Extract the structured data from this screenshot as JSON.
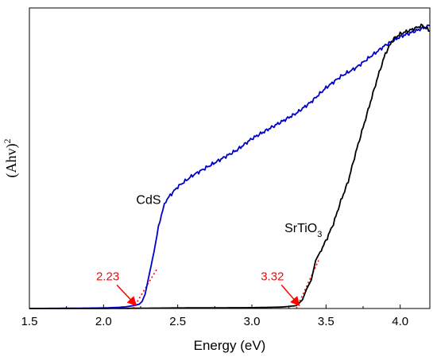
{
  "chart_data": {
    "type": "line",
    "xlabel": "Energy (eV)",
    "ylabel": {
      "base": "(Ahv)",
      "sup": "2"
    },
    "xlim": [
      1.5,
      4.2
    ],
    "ylim": [
      0,
      1.0
    ],
    "xticks": [
      "1.5",
      "2.0",
      "2.5",
      "3.0",
      "3.5",
      "4.0"
    ],
    "xtick_values": [
      1.5,
      2.0,
      2.5,
      3.0,
      3.5,
      4.0
    ],
    "y_ticks_labeled": false,
    "grid": false,
    "series": [
      {
        "name": "CdS",
        "color": "#0000cc",
        "x": [
          1.5,
          1.8,
          2.0,
          2.1,
          2.15,
          2.2,
          2.24,
          2.26,
          2.28,
          2.3,
          2.32,
          2.34,
          2.36,
          2.38,
          2.4,
          2.42,
          2.45,
          2.5,
          2.6,
          2.7,
          2.8,
          2.9,
          3.0,
          3.1,
          3.2,
          3.3,
          3.4,
          3.5,
          3.6,
          3.7,
          3.8,
          3.9,
          4.0,
          4.1,
          4.2
        ],
        "y": [
          0.0,
          0.001,
          0.002,
          0.004,
          0.006,
          0.01,
          0.015,
          0.025,
          0.05,
          0.1,
          0.15,
          0.2,
          0.26,
          0.31,
          0.35,
          0.38,
          0.4,
          0.43,
          0.47,
          0.5,
          0.53,
          0.56,
          0.6,
          0.63,
          0.66,
          0.69,
          0.73,
          0.78,
          0.82,
          0.85,
          0.89,
          0.93,
          0.96,
          0.98,
          1.0
        ]
      },
      {
        "name": "SrTiO3",
        "color": "#000000",
        "x": [
          1.5,
          2.0,
          2.5,
          3.0,
          3.2,
          3.3,
          3.34,
          3.37,
          3.4,
          3.43,
          3.46,
          3.5,
          3.55,
          3.6,
          3.65,
          3.7,
          3.75,
          3.8,
          3.85,
          3.9,
          3.95,
          4.0,
          4.05,
          4.1,
          4.15,
          4.2
        ],
        "y": [
          0.0,
          0.0,
          0.002,
          0.003,
          0.005,
          0.01,
          0.03,
          0.07,
          0.1,
          0.17,
          0.2,
          0.24,
          0.3,
          0.38,
          0.45,
          0.55,
          0.64,
          0.73,
          0.82,
          0.9,
          0.95,
          0.97,
          0.98,
          0.99,
          1.0,
          0.98
        ]
      }
    ],
    "tangent_lines": [
      {
        "series": "CdS",
        "color": "#ff0000",
        "x": [
          2.2,
          2.36
        ],
        "y": [
          0.0,
          0.14
        ]
      },
      {
        "series": "SrTiO3",
        "color": "#ff0000",
        "x": [
          3.3,
          3.45
        ],
        "y": [
          0.0,
          0.17
        ]
      }
    ],
    "annotations": [
      {
        "text": "CdS",
        "x": 2.22,
        "y": 0.37,
        "color": "#000000"
      },
      {
        "text_base": "SrTiO",
        "text_sub": "3",
        "x": 3.22,
        "y": 0.27,
        "color": "#000000"
      },
      {
        "text": "2.23",
        "x": 1.95,
        "y": 0.1,
        "color": "#ff0000",
        "arrow_to": [
          2.22,
          0.005
        ]
      },
      {
        "text": "3.32",
        "x": 3.06,
        "y": 0.1,
        "color": "#ff0000",
        "arrow_to": [
          3.32,
          0.005
        ]
      }
    ]
  }
}
